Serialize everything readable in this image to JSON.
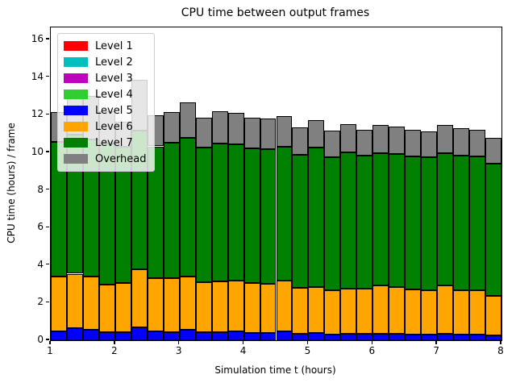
{
  "window": {
    "title": "CPU time between output frames"
  },
  "chart_data": {
    "type": "bar",
    "stacked": true,
    "title": "CPU time between output frames",
    "xlabel": "Simulation time t (hours)",
    "ylabel": "CPU time (hours) / frame",
    "xlim": [
      1,
      8
    ],
    "ylim": [
      0,
      16.65
    ],
    "grid": false,
    "legend_position": "upper left",
    "bar_width": 0.25,
    "bar_edge_color": "#000000",
    "x_ticks": [
      1,
      2,
      3,
      4,
      5,
      6,
      7,
      8
    ],
    "y_ticks": [
      0,
      2,
      4,
      6,
      8,
      10,
      12,
      14,
      16
    ],
    "bar_left_edges": [
      1.0,
      1.25,
      1.5,
      1.75,
      2.0,
      2.25,
      2.5,
      2.75,
      3.0,
      3.25,
      3.5,
      3.75,
      4.0,
      4.25,
      4.5,
      4.75,
      5.0,
      5.25,
      5.5,
      5.75,
      6.0,
      6.25,
      6.5,
      6.75,
      7.0,
      7.25,
      7.5,
      7.75
    ],
    "series": [
      {
        "name": "Level 1",
        "color": "#ff0000",
        "values": [
          0,
          0,
          0,
          0,
          0,
          0,
          0,
          0,
          0,
          0,
          0,
          0,
          0,
          0,
          0,
          0,
          0,
          0,
          0,
          0,
          0,
          0,
          0,
          0,
          0,
          0,
          0,
          0
        ]
      },
      {
        "name": "Level 2",
        "color": "#00bfbf",
        "values": [
          0,
          0,
          0,
          0,
          0,
          0,
          0,
          0,
          0,
          0,
          0,
          0,
          0,
          0,
          0,
          0,
          0,
          0,
          0,
          0,
          0,
          0,
          0,
          0,
          0,
          0,
          0,
          0
        ]
      },
      {
        "name": "Level 3",
        "color": "#bf00bf",
        "values": [
          0,
          0,
          0,
          0,
          0,
          0,
          0,
          0,
          0,
          0,
          0,
          0,
          0,
          0,
          0,
          0,
          0,
          0,
          0,
          0,
          0,
          0,
          0,
          0,
          0,
          0,
          0,
          0
        ]
      },
      {
        "name": "Level 4",
        "color": "#32cd32",
        "values": [
          0,
          0,
          0,
          0,
          0,
          0,
          0,
          0,
          0,
          0,
          0,
          0,
          0,
          0,
          0,
          0,
          0,
          0,
          0,
          0,
          0,
          0,
          0,
          0,
          0,
          0,
          0,
          0
        ]
      },
      {
        "name": "Level 5",
        "color": "#0000ff",
        "values": [
          0.49,
          0.64,
          0.57,
          0.44,
          0.41,
          0.67,
          0.46,
          0.45,
          0.57,
          0.42,
          0.44,
          0.49,
          0.39,
          0.38,
          0.46,
          0.35,
          0.38,
          0.32,
          0.35,
          0.33,
          0.35,
          0.35,
          0.32,
          0.32,
          0.35,
          0.31,
          0.29,
          0.27
        ]
      },
      {
        "name": "Level 6",
        "color": "#ffa500",
        "values": [
          2.92,
          2.9,
          2.84,
          2.54,
          2.62,
          3.09,
          2.84,
          2.85,
          2.81,
          2.68,
          2.7,
          2.69,
          2.65,
          2.62,
          2.72,
          2.43,
          2.46,
          2.35,
          2.38,
          2.4,
          2.56,
          2.5,
          2.38,
          2.32,
          2.58,
          2.37,
          2.36,
          2.11
        ]
      },
      {
        "name": "Level 7",
        "color": "#008000",
        "values": [
          7.13,
          7.4,
          7.28,
          7.47,
          7.27,
          7.39,
          7.02,
          7.21,
          7.37,
          7.15,
          7.32,
          7.26,
          7.18,
          7.18,
          7.14,
          7.08,
          7.41,
          7.08,
          7.28,
          7.09,
          7.03,
          7.06,
          7.09,
          7.11,
          7.04,
          7.14,
          7.13,
          7.03
        ]
      },
      {
        "name": "Overhead",
        "color": "#808080",
        "values": [
          1.61,
          2.11,
          2.31,
          1.75,
          1.35,
          2.7,
          1.65,
          1.64,
          1.9,
          1.59,
          1.72,
          1.67,
          1.62,
          1.62,
          1.62,
          1.46,
          1.47,
          1.4,
          1.47,
          1.4,
          1.5,
          1.48,
          1.4,
          1.37,
          1.5,
          1.45,
          1.4,
          1.34
        ]
      }
    ]
  }
}
